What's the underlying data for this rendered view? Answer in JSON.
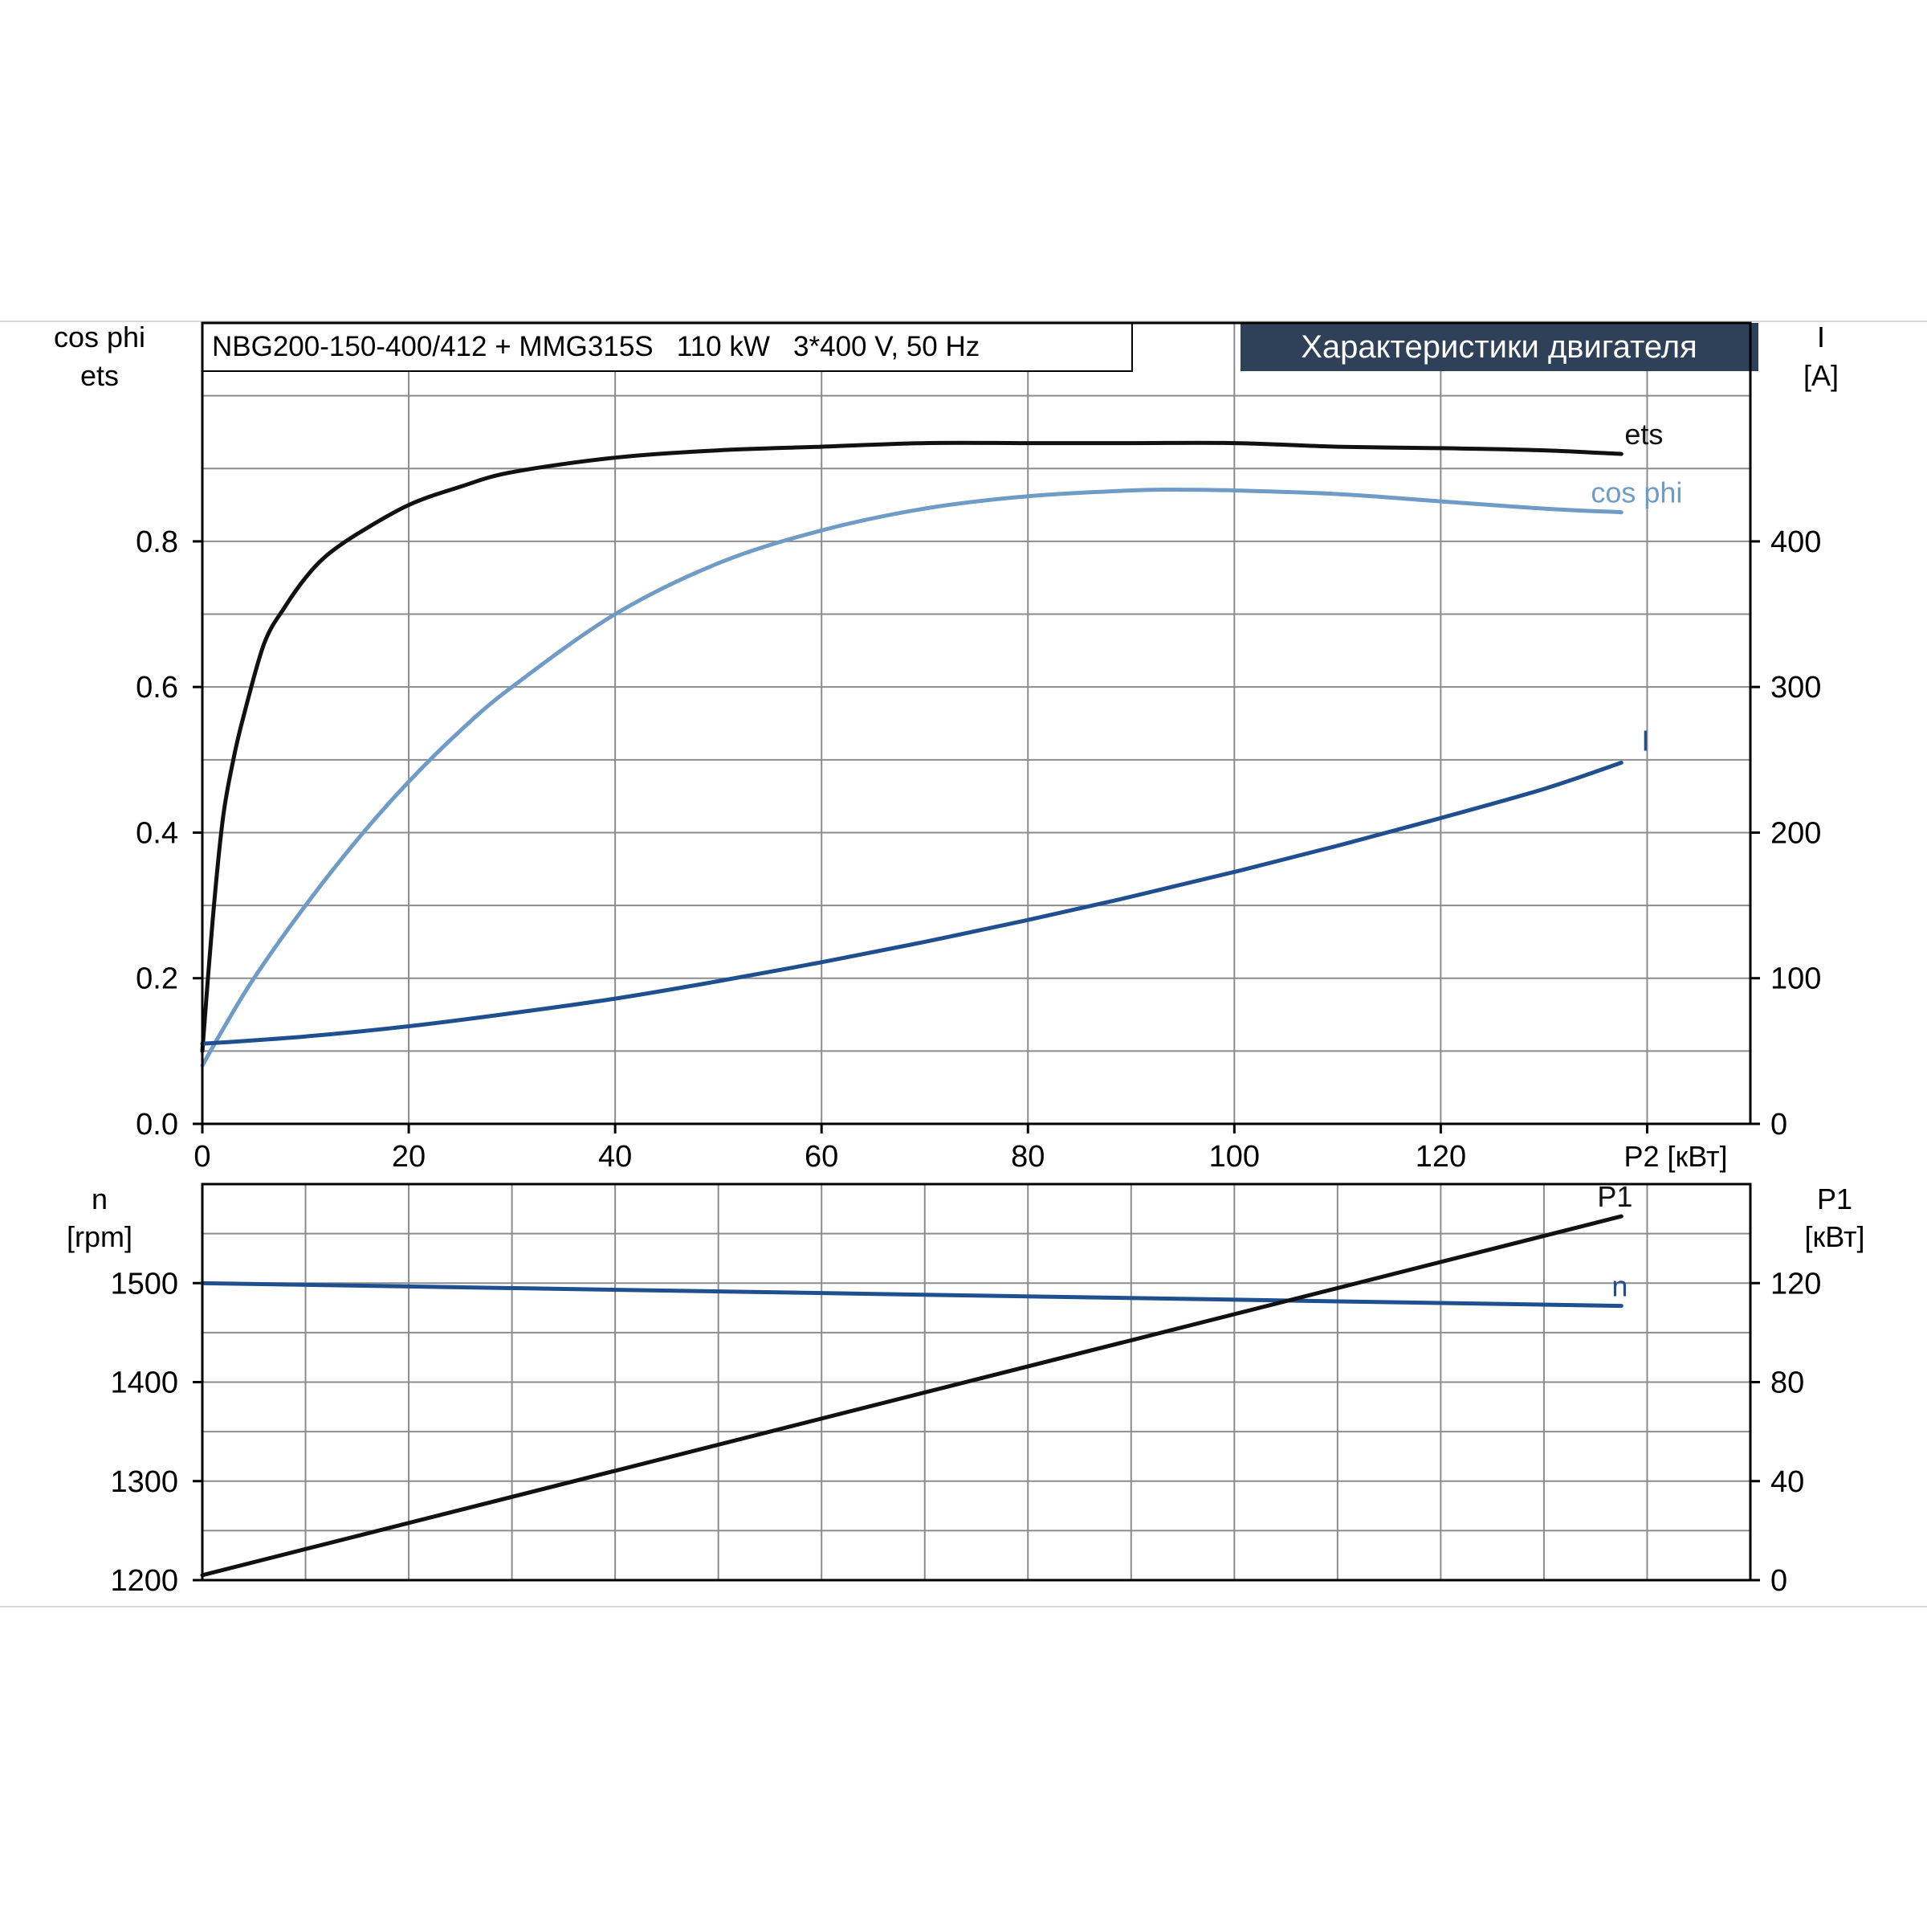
{
  "header": {
    "model_text": "NBG200-150-400/412 + MMG315S   110 kW   3*400 V, 50 Hz",
    "title_badge": "Характеристики двигателя",
    "colors": {
      "badge_bg": "#2f4158",
      "badge_text": "#ffffff"
    }
  },
  "chart_data": [
    {
      "type": "line",
      "xlabel": "P2 [кВт]",
      "xlim": [
        0,
        150
      ],
      "xticks": [
        "0",
        "20",
        "40",
        "60",
        "80",
        "100",
        "120"
      ],
      "left_axis": {
        "label_line1": "cos phi",
        "label_line2": "ets",
        "ylim": [
          0,
          1.1
        ],
        "ticks": [
          "0.0",
          "0.2",
          "0.4",
          "0.6",
          "0.8"
        ]
      },
      "right_axis": {
        "label_line1": "I",
        "label_line2": "[A]",
        "ylim": [
          0,
          550
        ],
        "ticks": [
          "0",
          "100",
          "200",
          "300",
          "400"
        ]
      },
      "grid": true,
      "series": [
        {
          "name": "ets",
          "axis": "left",
          "color": "#111111",
          "x": [
            0,
            1,
            2,
            3,
            4,
            6,
            8,
            10,
            12,
            15,
            20,
            25,
            30,
            40,
            50,
            60,
            70,
            80,
            90,
            100,
            110,
            120,
            130,
            137.5
          ],
          "y": [
            0.1,
            0.28,
            0.42,
            0.5,
            0.56,
            0.66,
            0.71,
            0.75,
            0.78,
            0.81,
            0.85,
            0.875,
            0.895,
            0.915,
            0.925,
            0.93,
            0.935,
            0.935,
            0.935,
            0.935,
            0.93,
            0.928,
            0.925,
            0.92
          ]
        },
        {
          "name": "cos phi",
          "axis": "left",
          "color": "#6f9cc6",
          "x": [
            0,
            2,
            5,
            10,
            15,
            20,
            25,
            30,
            40,
            50,
            60,
            70,
            80,
            90,
            95,
            100,
            110,
            120,
            130,
            137.5
          ],
          "y": [
            0.08,
            0.13,
            0.2,
            0.3,
            0.39,
            0.47,
            0.54,
            0.6,
            0.7,
            0.77,
            0.815,
            0.845,
            0.862,
            0.87,
            0.871,
            0.87,
            0.865,
            0.855,
            0.845,
            0.84
          ]
        },
        {
          "name": "I",
          "axis": "right",
          "color": "#1f4f8f",
          "x": [
            0,
            10,
            20,
            30,
            40,
            50,
            60,
            70,
            80,
            90,
            100,
            110,
            120,
            130,
            137.5
          ],
          "y": [
            55,
            60,
            67,
            76,
            86,
            98,
            111,
            125,
            140,
            156,
            173,
            191,
            210,
            230,
            248
          ]
        }
      ]
    },
    {
      "type": "line",
      "xlim": [
        0,
        150
      ],
      "left_axis": {
        "label_line1": "n",
        "label_line2": "[rpm]",
        "ylim": [
          1200,
          1600
        ],
        "ticks": [
          "1200",
          "1300",
          "1400",
          "1500"
        ]
      },
      "right_axis": {
        "label_line1": "P1",
        "label_line2": "[кВт]",
        "ylim": [
          0,
          160
        ],
        "ticks": [
          "0",
          "40",
          "80",
          "120"
        ]
      },
      "grid": true,
      "series": [
        {
          "name": "n",
          "axis": "left",
          "color": "#1f4f8f",
          "x": [
            0,
            137.5
          ],
          "y": [
            1500,
            1477
          ]
        },
        {
          "name": "P1",
          "axis": "right",
          "color": "#111111",
          "x": [
            0,
            137.5
          ],
          "y": [
            2,
            147
          ]
        }
      ]
    }
  ]
}
